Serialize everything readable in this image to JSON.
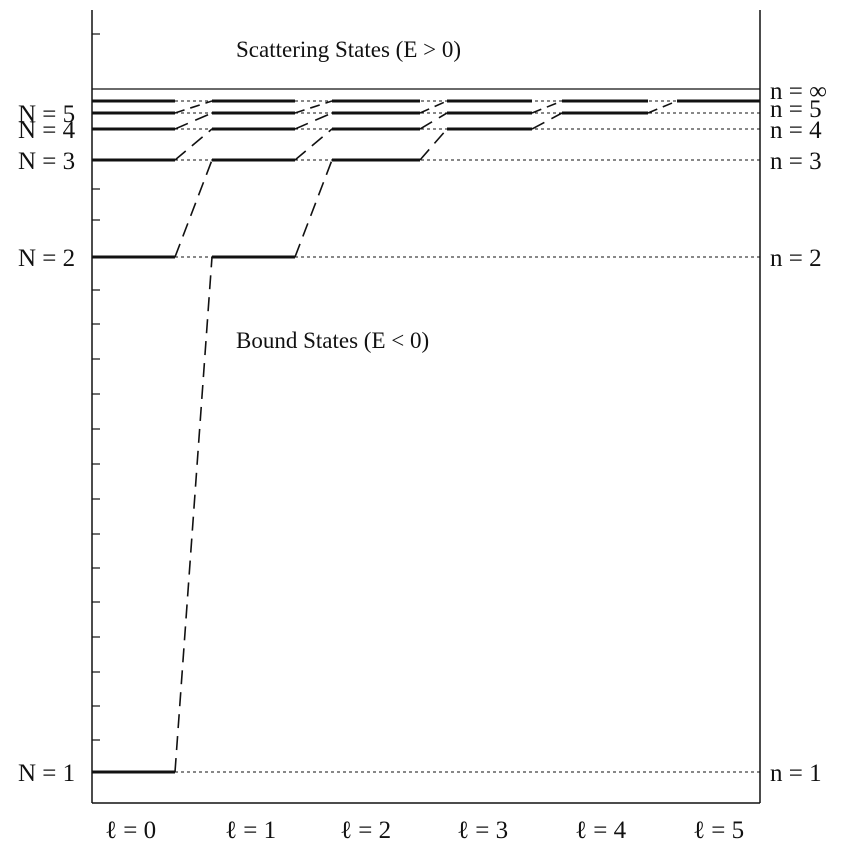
{
  "regions": {
    "scattering": "Scattering States (E > 0)",
    "bound": "Bound States (E < 0)"
  },
  "left_labels": [
    {
      "N": 1,
      "text": "N = 1"
    },
    {
      "N": 2,
      "text": "N = 2"
    },
    {
      "N": 3,
      "text": "N = 3"
    },
    {
      "N": 4,
      "text": "N = 4"
    },
    {
      "N": 5,
      "text": "N = 5"
    }
  ],
  "right_labels": [
    {
      "n": 1,
      "text": "n = 1"
    },
    {
      "n": 2,
      "text": "n = 2"
    },
    {
      "n": 3,
      "text": "n = 3"
    },
    {
      "n": 4,
      "text": "n = 4"
    },
    {
      "n": 5,
      "text": "n = 5"
    },
    {
      "n": "inf",
      "text": "n = ∞"
    }
  ],
  "l_labels": [
    "ℓ = 0",
    "ℓ = 1",
    "ℓ = 2",
    "ℓ = 3",
    "ℓ = 4",
    "ℓ = 5"
  ]
}
